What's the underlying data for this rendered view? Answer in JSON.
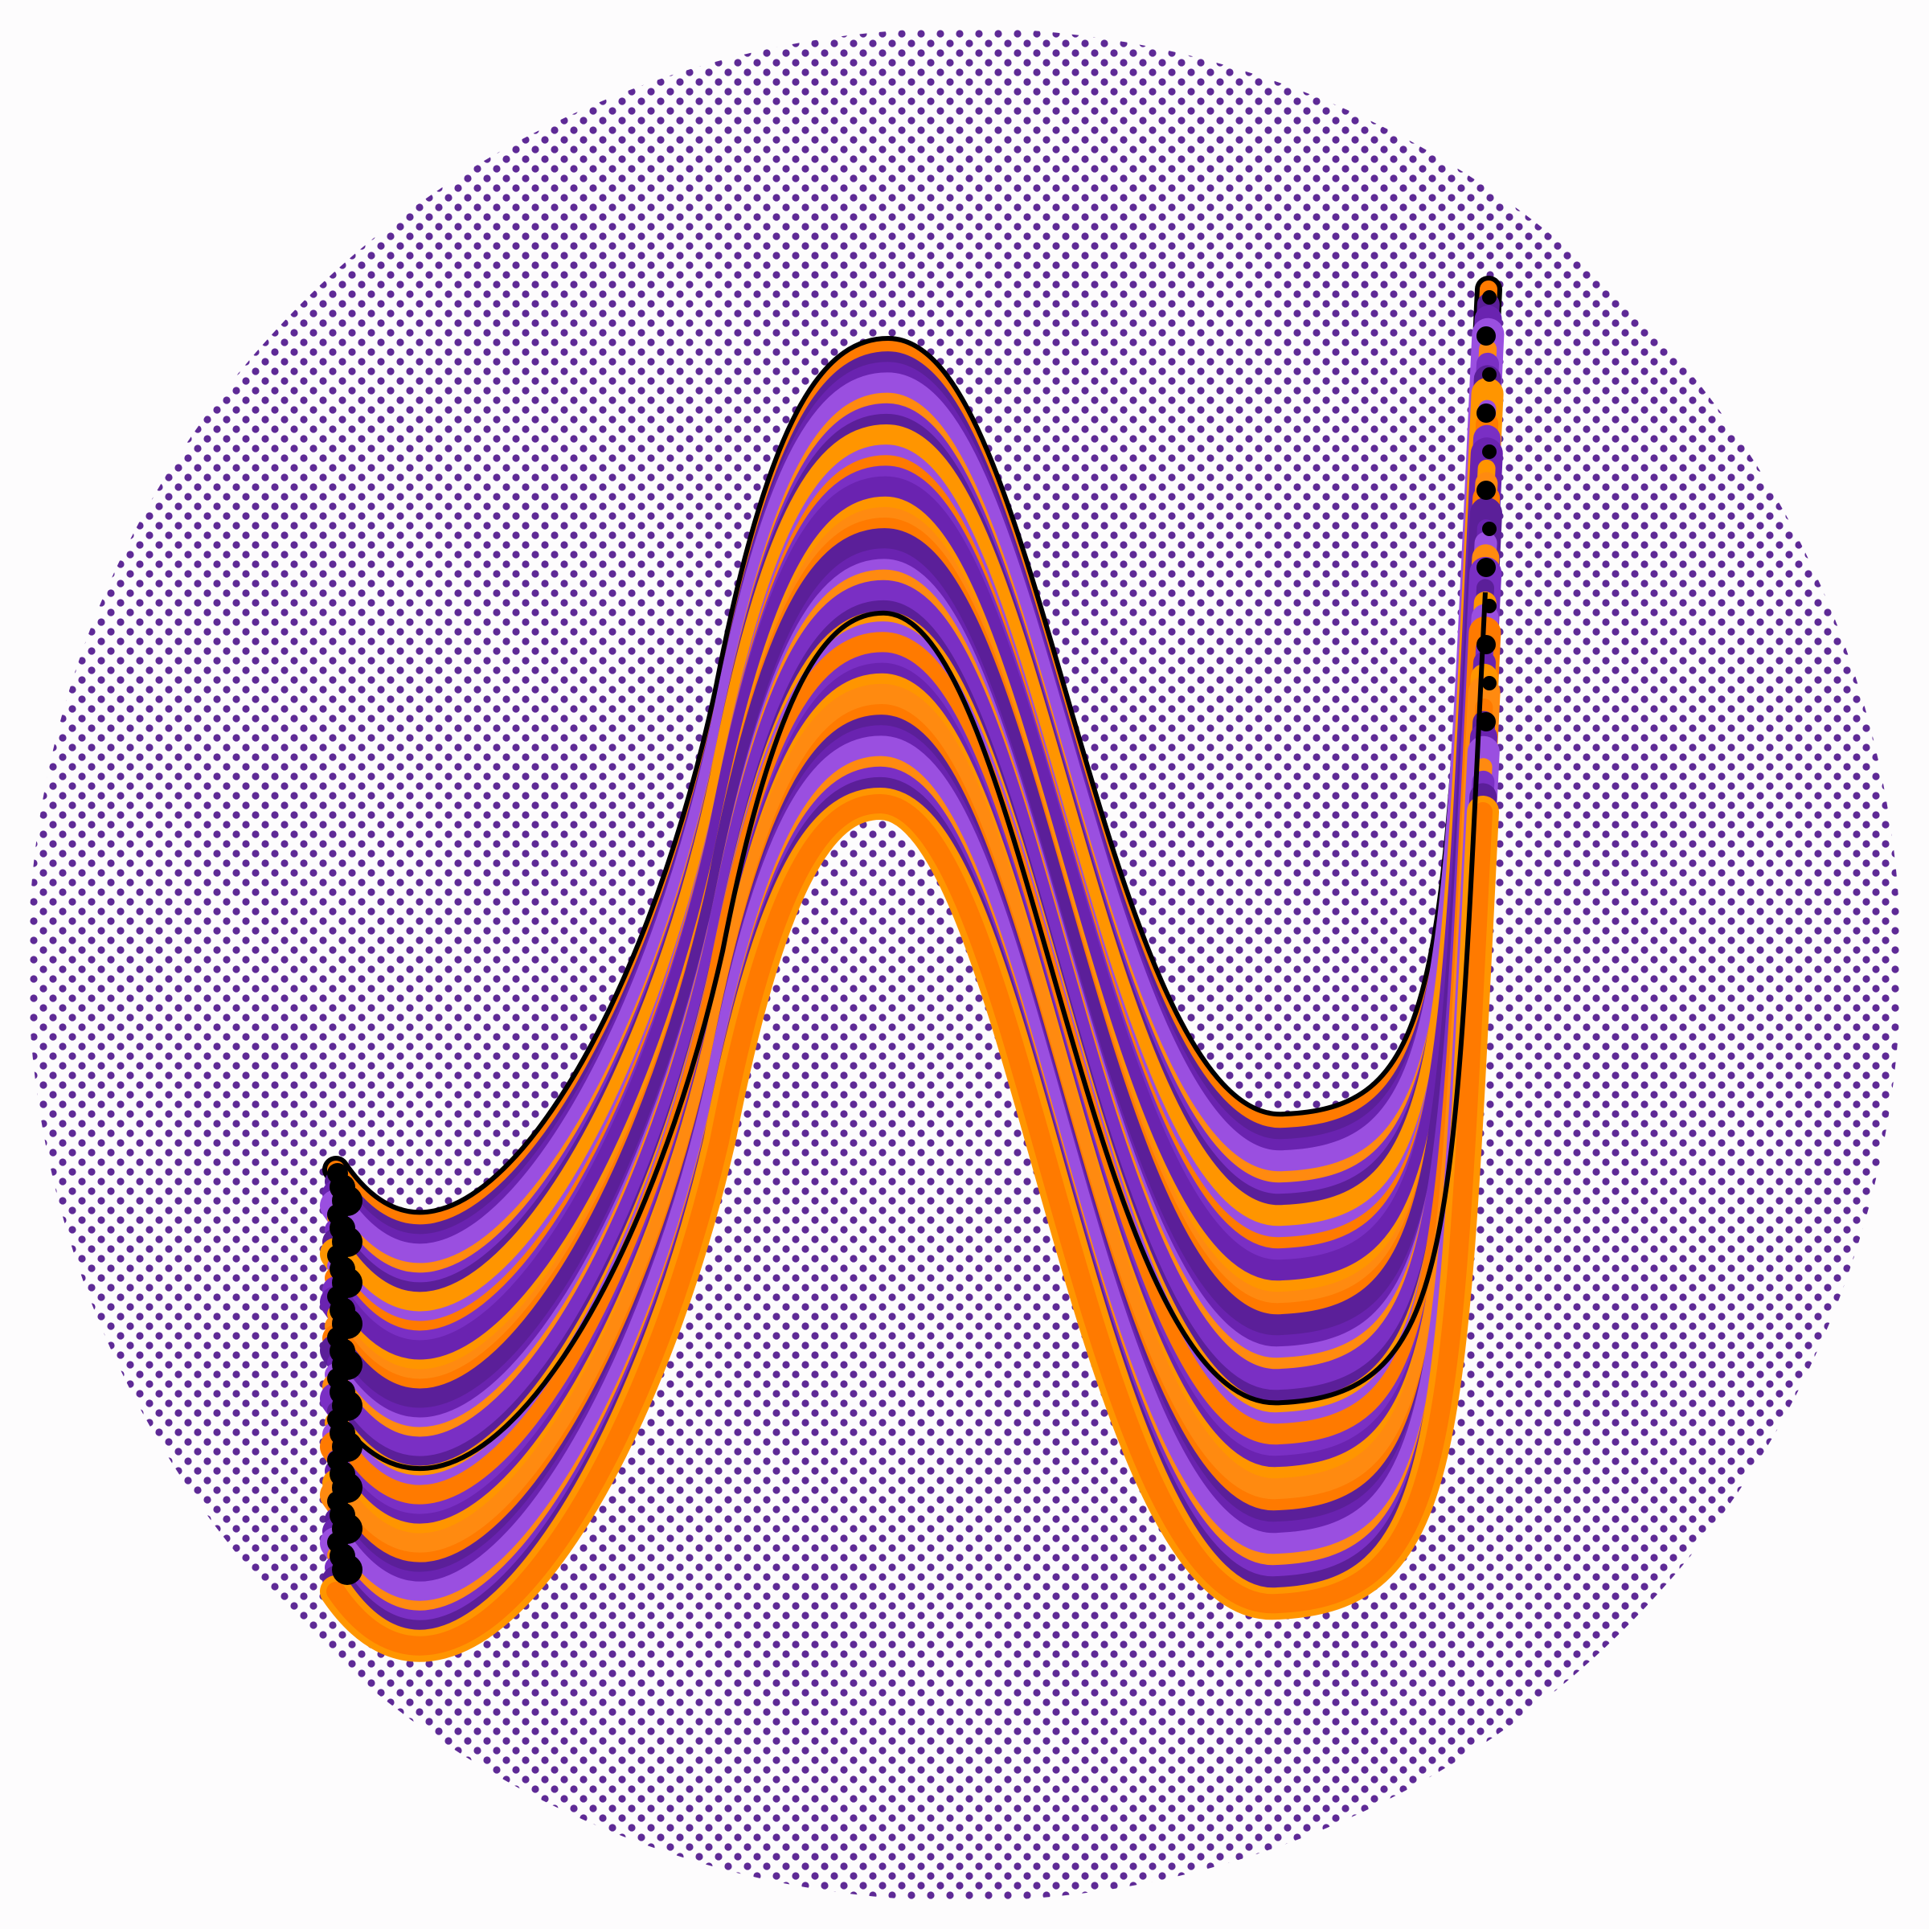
{
  "artwork": {
    "icon_name": "wave-ribbon-logo",
    "background_color": "#fdfcfd",
    "dot_pattern": {
      "color": "#5e2a96"
    },
    "ribbon": {
      "outline_color": "#000000",
      "palette": [
        "#ff7a00",
        "#ff9500",
        "#7a2fc4",
        "#9a4fe0",
        "#5b1f99",
        "#ff8a10",
        "#6a23b0"
      ],
      "strand_count": 36
    }
  }
}
